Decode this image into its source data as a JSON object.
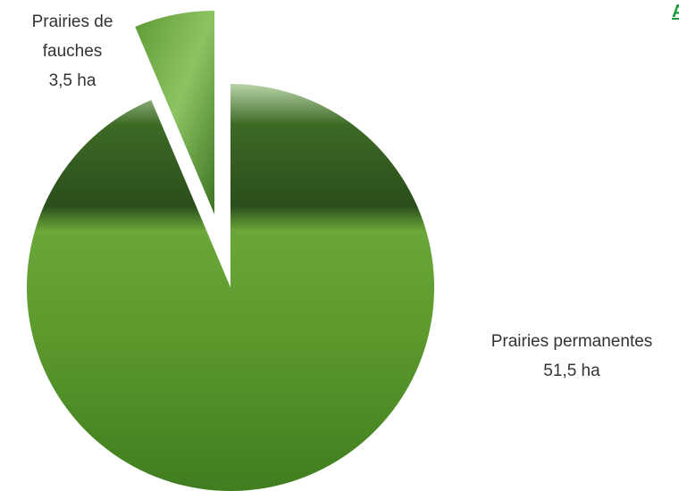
{
  "chart_data": {
    "type": "pie",
    "categories": [
      "Prairies permanentes",
      "Prairies de fauches"
    ],
    "values": [
      51.5,
      3.5
    ],
    "value_labels": [
      "51,5 ha",
      "3,5 ha"
    ],
    "annotation": "A"
  }
}
